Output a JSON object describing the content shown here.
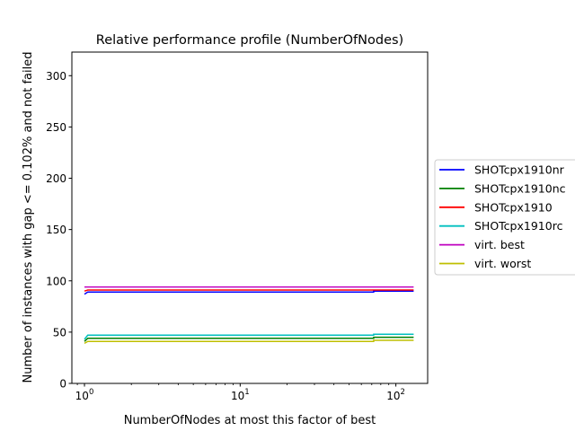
{
  "chart_data": {
    "type": "line",
    "title": "Relative performance profile (NumberOfNodes)",
    "xlabel": "NumberOfNodes at most this factor of best",
    "ylabel": "Number of instances with gap <= 0.102% and not failed",
    "xscale": "log",
    "xlim": [
      0.83,
      160
    ],
    "ylim": [
      0,
      323
    ],
    "x_ticks": [
      {
        "value": 1,
        "base": "10",
        "exp": "0"
      },
      {
        "value": 10,
        "base": "10",
        "exp": "1"
      },
      {
        "value": 100,
        "base": "10",
        "exp": "2"
      }
    ],
    "y_ticks": [
      0,
      50,
      100,
      150,
      200,
      250,
      300
    ],
    "grid": false,
    "legend_position": "right, outside plot",
    "series": [
      {
        "name": "SHOTcpx1910nr",
        "color": "#0000ff",
        "points": [
          [
            1.0,
            87
          ],
          [
            1.05,
            89
          ],
          [
            72,
            89
          ],
          [
            72,
            90
          ],
          [
            130,
            90
          ]
        ]
      },
      {
        "name": "SHOTcpx1910nc",
        "color": "#008000",
        "points": [
          [
            1.0,
            41
          ],
          [
            1.05,
            44
          ],
          [
            72,
            44
          ],
          [
            72,
            45
          ],
          [
            130,
            45
          ]
        ]
      },
      {
        "name": "SHOTcpx1910",
        "color": "#ff0000",
        "points": [
          [
            1.0,
            90
          ],
          [
            1.05,
            91
          ],
          [
            130,
            91
          ]
        ]
      },
      {
        "name": "SHOTcpx1910rc",
        "color": "#00bfbf",
        "points": [
          [
            1.0,
            43
          ],
          [
            1.05,
            47
          ],
          [
            72,
            47
          ],
          [
            72,
            48
          ],
          [
            130,
            48
          ]
        ]
      },
      {
        "name": "virt. best",
        "color": "#bf00bf",
        "points": [
          [
            1.0,
            94
          ],
          [
            130,
            94
          ]
        ]
      },
      {
        "name": "virt. worst",
        "color": "#bfbf00",
        "points": [
          [
            1.0,
            39
          ],
          [
            1.05,
            41
          ],
          [
            72,
            41
          ],
          [
            72,
            42
          ],
          [
            130,
            42
          ]
        ]
      }
    ]
  }
}
